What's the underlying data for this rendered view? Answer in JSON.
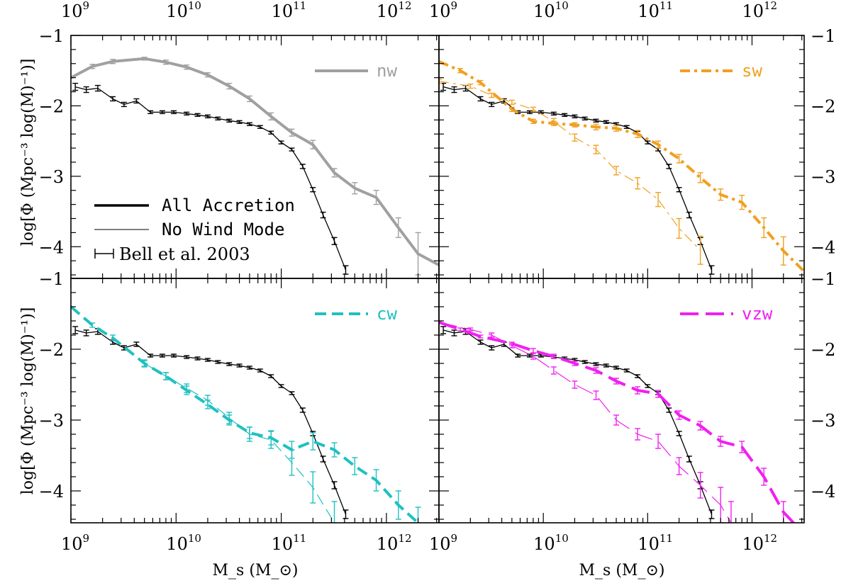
{
  "chart_data": {
    "type": "line",
    "x_axis": {
      "label": "M_s (M_⊙)",
      "scale": "log",
      "range": [
        1000000000.0,
        3160000000000.0
      ],
      "tick_labels": [
        "10^9",
        "10^10",
        "10^11",
        "10^12"
      ]
    },
    "y_axis": {
      "label": "log[Φ (Mpc⁻³ log(M)⁻¹)]",
      "range": [
        -4.45,
        -1.0
      ],
      "tick_labels": [
        "−1",
        "−2",
        "−3",
        "−4"
      ]
    },
    "legend": [
      {
        "label": "All Accretion",
        "style": "thick"
      },
      {
        "label": "No Wind Mode",
        "style": "thin"
      },
      {
        "label": "Bell et al. 2003",
        "style": "errorbar"
      }
    ],
    "bell_2003": {
      "x": [
        1100000000.0,
        1400000000.0,
        1800000000.0,
        2500000000.0,
        3200000000.0,
        4200000000.0,
        5700000000.0,
        7400000000.0,
        9500000000.0,
        12600000000.0,
        16000000000.0,
        20000000000.0,
        25000000000.0,
        32000000000.0,
        40000000000.0,
        50000000000.0,
        63000000000.0,
        80000000000.0,
        100000000000.0,
        126000000000.0,
        160000000000.0,
        200000000000.0,
        250000000000.0,
        320000000000.0,
        410000000000.0
      ],
      "y": [
        -1.73,
        -1.77,
        -1.75,
        -1.9,
        -1.98,
        -1.93,
        -2.09,
        -2.09,
        -2.09,
        -2.11,
        -2.13,
        -2.15,
        -2.18,
        -2.21,
        -2.23,
        -2.26,
        -2.3,
        -2.38,
        -2.52,
        -2.62,
        -2.86,
        -3.19,
        -3.55,
        -3.92,
        -4.33
      ],
      "err": [
        0.05,
        0.04,
        0.04,
        0.03,
        0.03,
        0.03,
        0.02,
        0.02,
        0.02,
        0.02,
        0.02,
        0.02,
        0.02,
        0.02,
        0.02,
        0.02,
        0.02,
        0.02,
        0.02,
        0.02,
        0.03,
        0.03,
        0.04,
        0.05,
        0.06
      ]
    },
    "panels": [
      {
        "id": "nw",
        "label": "nw",
        "color": "#a0a0a0",
        "legend_dash": "",
        "series": [
          {
            "style": "thick",
            "x": [
              1000000000.0,
              1600000000.0,
              2500000000.0,
              5000000000.0,
              8000000000.0,
              12600000000.0,
              20000000000.0,
              32000000000.0,
              50000000000.0,
              80000000000.0,
              126000000000.0,
              200000000000.0,
              320000000000.0,
              500000000000.0,
              800000000000.0,
              1300000000000.0,
              2000000000000.0,
              3160000000000.0
            ],
            "y": [
              -1.6,
              -1.44,
              -1.37,
              -1.33,
              -1.38,
              -1.45,
              -1.56,
              -1.72,
              -1.9,
              -2.15,
              -2.38,
              -2.55,
              -2.95,
              -3.17,
              -3.3,
              -3.73,
              -4.1,
              -4.26
            ],
            "err": [
              0,
              0.03,
              0.03,
              0.02,
              0.03,
              0.03,
              0.03,
              0.04,
              0.04,
              0.05,
              0.05,
              0.06,
              0.06,
              0.08,
              0.1,
              0.14,
              0.3,
              0
            ]
          }
        ]
      },
      {
        "id": "sw",
        "label": "sw",
        "color": "#f0a020",
        "legend_dash": "14,6,4,6",
        "series": [
          {
            "style": "thick",
            "x": [
              1000000000.0,
              1600000000.0,
              2500000000.0,
              5000000000.0,
              8000000000.0,
              12600000000.0,
              20000000000.0,
              32000000000.0,
              50000000000.0,
              80000000000.0,
              126000000000.0,
              200000000000.0,
              320000000000.0,
              500000000000.0,
              800000000000.0,
              1300000000000.0,
              2000000000000.0,
              3160000000000.0
            ],
            "y": [
              -1.37,
              -1.5,
              -1.67,
              -2.05,
              -2.22,
              -2.25,
              -2.27,
              -2.3,
              -2.32,
              -2.4,
              -2.55,
              -2.75,
              -3.02,
              -3.26,
              -3.37,
              -3.73,
              -4.06,
              -4.35
            ],
            "err": [
              0,
              0.03,
              0.03,
              0.03,
              0.03,
              0.03,
              0.03,
              0.04,
              0.04,
              0.05,
              0.05,
              0.06,
              0.07,
              0.08,
              0.1,
              0.14,
              0.2,
              0
            ]
          },
          {
            "style": "thin",
            "x": [
              1000000000.0,
              2000000000.0,
              3200000000.0,
              5000000000.0,
              8000000000.0,
              12600000000.0,
              20000000000.0,
              32000000000.0,
              50000000000.0,
              80000000000.0,
              126000000000.0,
              200000000000.0,
              320000000000.0
            ],
            "y": [
              -1.65,
              -1.72,
              -1.85,
              -1.95,
              -2.05,
              -2.22,
              -2.45,
              -2.62,
              -2.92,
              -3.1,
              -3.33,
              -3.74,
              -4.05
            ],
            "err": [
              0.03,
              0.03,
              0.03,
              0.03,
              0.03,
              0.04,
              0.05,
              0.06,
              0.06,
              0.08,
              0.1,
              0.14,
              0.2
            ]
          }
        ]
      },
      {
        "id": "cw",
        "label": "cw",
        "color": "#20c0c0",
        "legend_dash": "16,8",
        "series": [
          {
            "style": "thick",
            "x": [
              1000000000.0,
              1600000000.0,
              2500000000.0,
              5000000000.0,
              8000000000.0,
              12600000000.0,
              20000000000.0,
              32000000000.0,
              50000000000.0,
              80000000000.0,
              126000000000.0,
              200000000000.0,
              320000000000.0,
              500000000000.0,
              800000000000.0,
              1300000000000.0,
              2000000000000.0
            ],
            "y": [
              -1.4,
              -1.66,
              -1.84,
              -2.2,
              -2.38,
              -2.58,
              -2.78,
              -3.0,
              -3.18,
              -3.25,
              -3.42,
              -3.3,
              -3.42,
              -3.65,
              -3.85,
              -4.2,
              -4.45
            ],
            "err": [
              0,
              0.03,
              0.04,
              0.05,
              0.05,
              0.06,
              0.06,
              0.07,
              0.08,
              0.1,
              0.12,
              0.12,
              0.1,
              0.12,
              0.15,
              0.2,
              0.22
            ]
          },
          {
            "style": "thin",
            "x": [
              5000000000.0,
              8000000000.0,
              12600000000.0,
              20000000000.0,
              32000000000.0,
              50000000000.0,
              80000000000.0,
              126000000000.0,
              200000000000.0,
              320000000000.0
            ],
            "y": [
              -2.2,
              -2.38,
              -2.55,
              -2.72,
              -2.97,
              -3.2,
              -3.28,
              -3.6,
              -3.95,
              -4.45
            ],
            "err": [
              0.04,
              0.05,
              0.06,
              0.07,
              0.08,
              0.1,
              0.12,
              0.18,
              0.22,
              0.3
            ]
          }
        ]
      },
      {
        "id": "vzw",
        "label": "vzw",
        "color": "#f020f0",
        "legend_dash": "26,10",
        "series": [
          {
            "style": "thick",
            "x": [
              1000000000.0,
              1600000000.0,
              2500000000.0,
              5000000000.0,
              8000000000.0,
              12600000000.0,
              20000000000.0,
              32000000000.0,
              50000000000.0,
              80000000000.0,
              126000000000.0,
              200000000000.0,
              320000000000.0,
              500000000000.0,
              800000000000.0,
              1300000000000.0,
              2000000000000.0,
              2500000000000.0
            ],
            "y": [
              -1.62,
              -1.72,
              -1.82,
              -1.92,
              -2.02,
              -2.1,
              -2.2,
              -2.3,
              -2.45,
              -2.58,
              -2.63,
              -2.93,
              -3.08,
              -3.3,
              -3.38,
              -3.8,
              -4.3,
              -4.45
            ],
            "err": [
              0,
              0.02,
              0.02,
              0.02,
              0.03,
              0.03,
              0.03,
              0.04,
              0.04,
              0.05,
              0.05,
              0.06,
              0.06,
              0.07,
              0.08,
              0.12,
              0.15,
              0
            ]
          },
          {
            "style": "thin",
            "x": [
              1000000000.0,
              2000000000.0,
              3200000000.0,
              5000000000.0,
              8000000000.0,
              12600000000.0,
              20000000000.0,
              32000000000.0,
              50000000000.0,
              80000000000.0,
              126000000000.0,
              200000000000.0,
              320000000000.0,
              500000000000.0,
              630000000000.0
            ],
            "y": [
              -1.62,
              -1.72,
              -1.8,
              -1.95,
              -2.1,
              -2.3,
              -2.5,
              -2.65,
              -3.0,
              -3.2,
              -3.3,
              -3.65,
              -3.92,
              -4.2,
              -4.45
            ],
            "err": [
              0.02,
              0.02,
              0.03,
              0.03,
              0.04,
              0.05,
              0.05,
              0.06,
              0.07,
              0.08,
              0.1,
              0.12,
              0.18,
              0.25,
              0.3
            ]
          }
        ]
      }
    ]
  }
}
